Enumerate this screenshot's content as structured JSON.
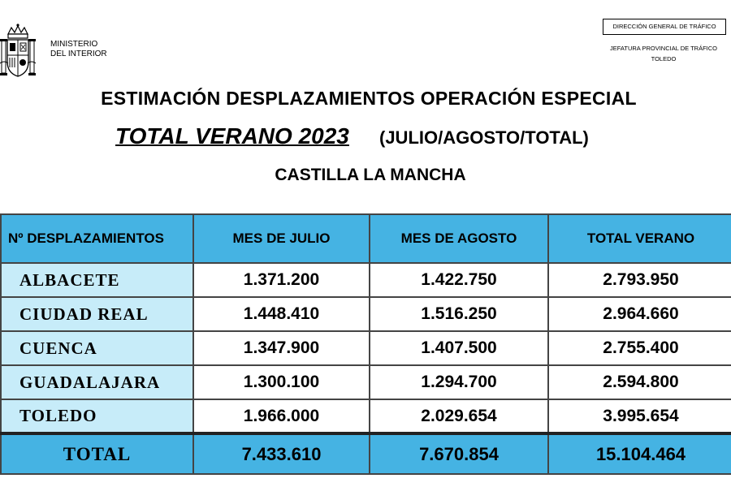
{
  "header": {
    "ministry_line1": "MINISTERIO",
    "ministry_line2": "DEL INTERIOR",
    "dgt_label": "DIRECCIÓN GENERAL DE TRÁFICO",
    "jefatura_line1": "JEFATURA PROVINCIAL DE TRÁFICO",
    "jefatura_line2": "TOLEDO"
  },
  "titles": {
    "line1": "ESTIMACIÓN DESPLAZAMIENTOS OPERACIÓN ESPECIAL",
    "line2_main": "TOTAL VERANO 2023",
    "line2_sub": "(JULIO/AGOSTO/TOTAL)",
    "line3": "CASTILLA LA MANCHA"
  },
  "table": {
    "headers": [
      "Nº DESPLAZAMIENTOS",
      "MES DE JULIO",
      "MES DE AGOSTO",
      "TOTAL VERANO"
    ],
    "rows": [
      {
        "province": "ALBACETE",
        "julio": "1.371.200",
        "agosto": "1.422.750",
        "total": "2.793.950"
      },
      {
        "province": "CIUDAD REAL",
        "julio": "1.448.410",
        "agosto": "1.516.250",
        "total": "2.964.660"
      },
      {
        "province": "CUENCA",
        "julio": "1.347.900",
        "agosto": "1.407.500",
        "total": "2.755.400"
      },
      {
        "province": "GUADALAJARA",
        "julio": "1.300.100",
        "agosto": "1.294.700",
        "total": "2.594.800"
      },
      {
        "province": "TOLEDO",
        "julio": "1.966.000",
        "agosto": "2.029.654",
        "total": "3.995.654"
      }
    ],
    "total_row": {
      "label": "TOTAL",
      "julio": "7.433.610",
      "agosto": "7.670.854",
      "total": "15.104.464"
    }
  },
  "colors": {
    "header_fill": "#45b3e3",
    "province_fill": "#c7ecf9"
  }
}
